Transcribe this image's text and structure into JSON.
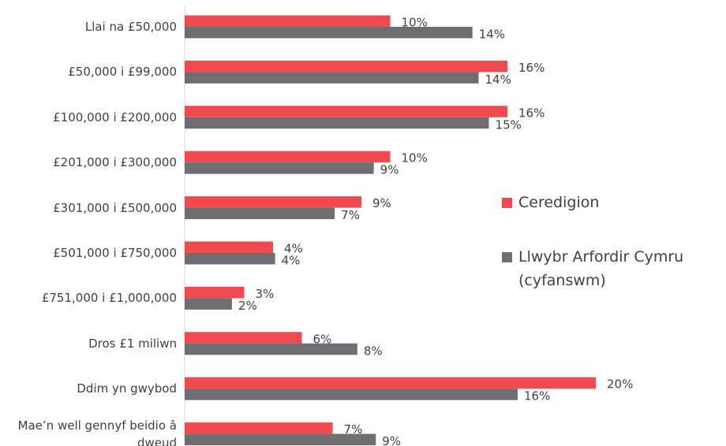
{
  "chart_data": {
    "type": "bar",
    "orientation": "horizontal",
    "categories": [
      "Llai na £50,000",
      "£50,000 i £99,000",
      "£100,000 i £200,000",
      "£201,000 i £300,000",
      "£301,000 i £500,000",
      "£501,000 i £750,000",
      "£751,000 i £1,000,000",
      "Dros £1 miliwn",
      "Ddim yn gwybod",
      "Mae’n well gennyf beidio â dweud"
    ],
    "series": [
      {
        "name": "Ceredigion",
        "color": "#f04a50",
        "values": [
          10.0,
          15.7,
          15.7,
          10.0,
          8.6,
          4.3,
          2.9,
          5.7,
          20.0,
          7.2
        ],
        "value_labels": [
          "10%",
          "16%",
          "16%",
          "10%",
          "9%",
          "4%",
          "3%",
          "6%",
          "20%",
          "7%"
        ]
      },
      {
        "name": "Llwybr Arfordir Cymru (cyfanswm)",
        "color": "#6d6e71",
        "values": [
          14.0,
          14.3,
          14.8,
          9.2,
          7.3,
          4.4,
          2.3,
          8.4,
          16.2,
          9.3
        ],
        "value_labels": [
          "14%",
          "14%",
          "15%",
          "9%",
          "7%",
          "4%",
          "2%",
          "8%",
          "16%",
          "9%"
        ]
      }
    ],
    "xlim": [
      0,
      20
    ],
    "legend": "right"
  }
}
